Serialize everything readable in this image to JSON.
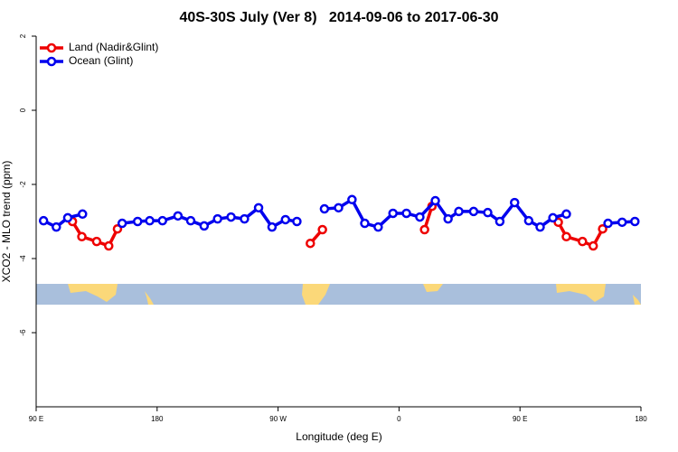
{
  "chart_data": {
    "type": "line",
    "title": "40S-30S July (Ver 8)   2014-09-06 to 2017-06-30",
    "xlabel": "Longitude (deg E)",
    "ylabel": "XCO2 - MLO trend (ppm)",
    "xlim": [
      90,
      540
    ],
    "xticks": [
      {
        "value": 90,
        "label": "90 E"
      },
      {
        "value": 180,
        "label": "180"
      },
      {
        "value": 270,
        "label": "90 W"
      },
      {
        "value": 360,
        "label": "0"
      },
      {
        "value": 450,
        "label": "90 E"
      },
      {
        "value": 540,
        "label": "180"
      }
    ],
    "ylim": [
      -8,
      2
    ],
    "yticks": [
      2,
      0,
      -2,
      -4,
      -6
    ],
    "legend": "upper left",
    "series": [
      {
        "name": "Land (Nadir&Glint)",
        "color": "#ee0000",
        "x": [
          117,
          124,
          135,
          144,
          150.5,
          null,
          294,
          303,
          null,
          379,
          384.5,
          null,
          478.5,
          484.5,
          496.5,
          504.5,
          511.5
        ],
        "values": [
          -3.0,
          -3.41,
          -3.54,
          -3.66,
          -3.2,
          null,
          -3.59,
          -3.22,
          null,
          -3.22,
          -2.59,
          null,
          -3.02,
          -3.41,
          -3.54,
          -3.66,
          -3.2
        ]
      },
      {
        "name": "Ocean (Glint)",
        "color": "#0000ee",
        "x": [
          95.5,
          105,
          113.5,
          124.5,
          null,
          154,
          165.5,
          174.5,
          184,
          195.5,
          205,
          215,
          225,
          235,
          245,
          255.5,
          265.5,
          275.5,
          284,
          null,
          304.5,
          315,
          325,
          334.5,
          344.5,
          355.5,
          365.5,
          375.5,
          387,
          396.5,
          404.5,
          415.5,
          426,
          435,
          446,
          456.5,
          465,
          474.5,
          484.5,
          null,
          515.5,
          526,
          535.5
        ],
        "values": [
          -2.98,
          -3.15,
          -2.9,
          -2.8,
          null,
          -3.05,
          -3.0,
          -2.98,
          -2.98,
          -2.85,
          -2.98,
          -3.12,
          -2.93,
          -2.88,
          -2.93,
          -2.63,
          -3.15,
          -2.95,
          -3.0,
          null,
          -2.66,
          -2.63,
          -2.41,
          -3.05,
          -3.15,
          -2.78,
          -2.78,
          -2.88,
          -2.44,
          -2.93,
          -2.73,
          -2.73,
          -2.76,
          -3.0,
          -2.49,
          -2.98,
          -3.15,
          -2.9,
          -2.8,
          null,
          -3.05,
          -3.02,
          -3.0
        ]
      }
    ]
  }
}
